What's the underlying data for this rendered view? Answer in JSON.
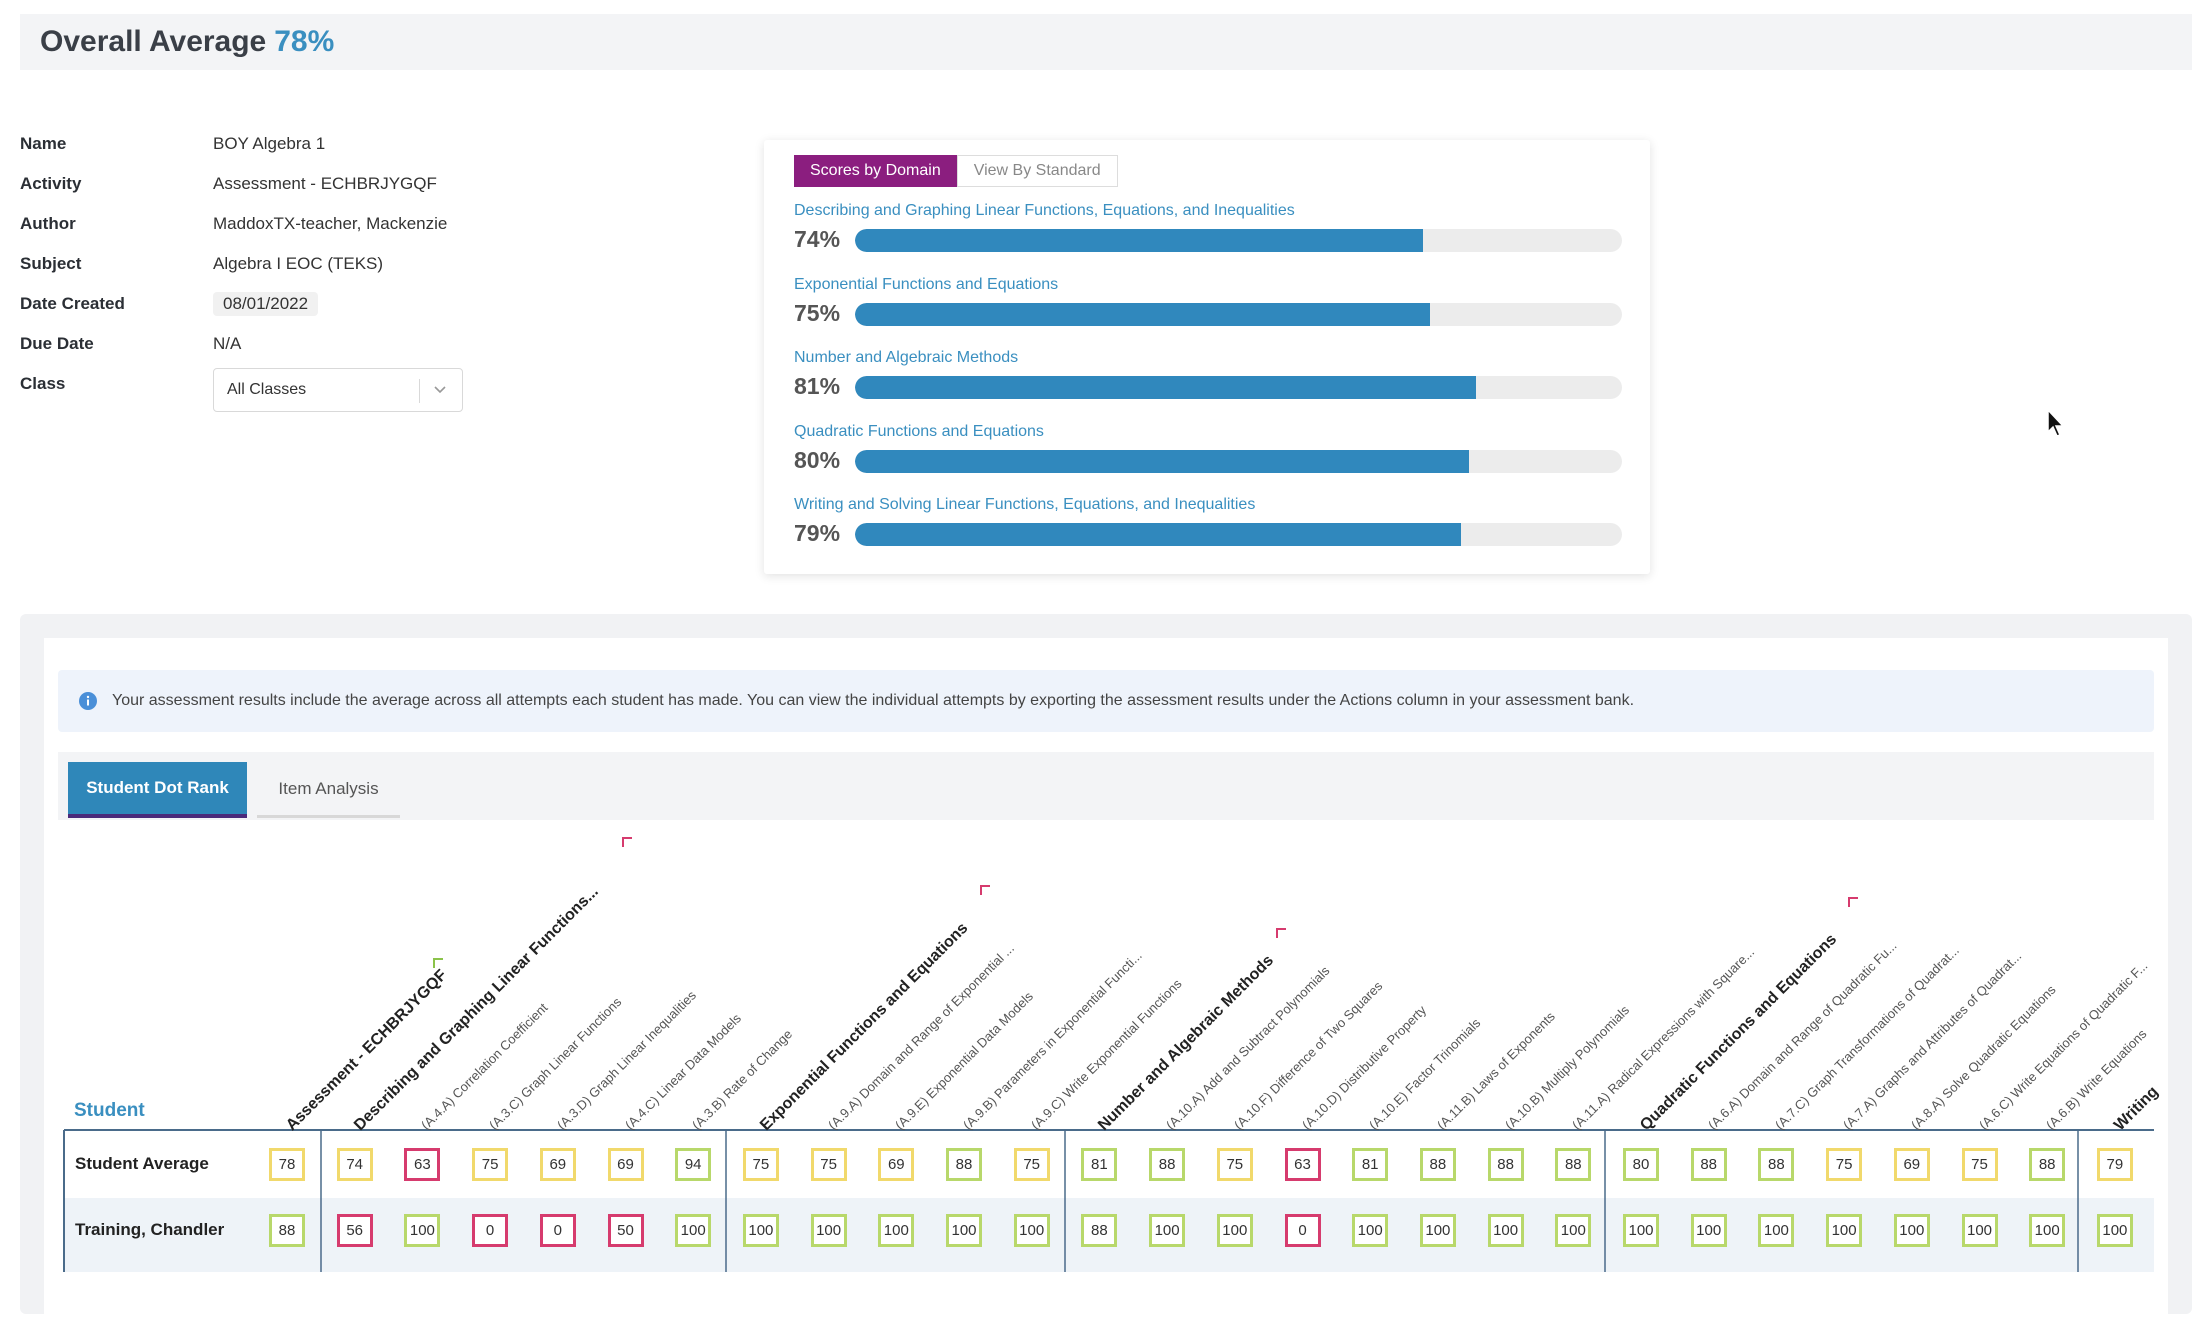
{
  "header": {
    "title": "Overall Average",
    "average": "78%"
  },
  "info": [
    {
      "label": "Name",
      "value": "BOY Algebra 1"
    },
    {
      "label": "Activity",
      "value": "Assessment - ECHBRJYGQF"
    },
    {
      "label": "Author",
      "value": "MaddoxTX-teacher, Mackenzie"
    },
    {
      "label": "Subject",
      "value": "Algebra I EOC (TEKS)"
    },
    {
      "label": "Date Created",
      "value": "08/01/2022"
    },
    {
      "label": "Due Date",
      "value": "N/A"
    },
    {
      "label": "Class",
      "value": "All Classes"
    }
  ],
  "domain_card": {
    "tab_active": "Scores by Domain",
    "tab_inactive": "View By Standard",
    "domains": [
      {
        "name": "Describing and Graphing Linear Functions, Equations, and Inequalities",
        "pct_label": "74%",
        "value": 0.74
      },
      {
        "name": "Exponential Functions and Equations",
        "pct_label": "75%",
        "value": 0.75
      },
      {
        "name": "Number and Algebraic Methods",
        "pct_label": "81%",
        "value": 0.81
      },
      {
        "name": "Quadratic Functions and Equations",
        "pct_label": "80%",
        "value": 0.8
      },
      {
        "name": "Writing and Solving Linear Functions, Equations, and Inequalities",
        "pct_label": "79%",
        "value": 0.79
      }
    ]
  },
  "alert": "Your assessment results include the average across all attempts each student has made. You can view the individual attempts by exporting the assessment results under the Actions column in your assessment bank.",
  "tabs": {
    "active": "Student Dot Rank",
    "inactive": "Item Analysis"
  },
  "table": {
    "student_header": "Student",
    "columns": [
      {
        "label": "Assessment - ECHBRJYGQF",
        "domain": true,
        "flag": "#8bc34a"
      },
      {
        "label": "Describing and Graphing Linear Functions...",
        "domain": true,
        "flag": "#d63b6e"
      },
      {
        "label": "(A.4.A) Correlation Coefficient"
      },
      {
        "label": "(A.3.C) Graph Linear Functions"
      },
      {
        "label": "(A.3.D) Graph Linear Inequalities"
      },
      {
        "label": "(A.4.C) Linear Data Models"
      },
      {
        "label": "(A.3.B) Rate of Change"
      },
      {
        "label": "Exponential Functions and Equations",
        "domain": true,
        "flag": "#d63b6e"
      },
      {
        "label": "(A.9.A) Domain and Range of Exponential ..."
      },
      {
        "label": "(A.9.E) Exponential Data Models"
      },
      {
        "label": "(A.9.B) Parameters in Exponential Functi..."
      },
      {
        "label": "(A.9.C) Write Exponential Functions"
      },
      {
        "label": "Number and Algebraic Methods",
        "domain": true,
        "flag": "#d63b6e"
      },
      {
        "label": "(A.10.A) Add and Subtract Polynomials"
      },
      {
        "label": "(A.10.F) Difference of Two Squares"
      },
      {
        "label": "(A.10.D) Distributive Property"
      },
      {
        "label": "(A.10.E) Factor Trinomials"
      },
      {
        "label": "(A.11.B) Laws of Exponents"
      },
      {
        "label": "(A.10.B) Multiply Polynomials"
      },
      {
        "label": "(A.11.A) Radical Expressions with Square..."
      },
      {
        "label": "Quadratic Functions and Equations",
        "domain": true,
        "flag": "#d63b6e"
      },
      {
        "label": "(A.6.A) Domain and Range of Quadratic Fu..."
      },
      {
        "label": "(A.7.C) Graph Transformations of Quadrat..."
      },
      {
        "label": "(A.7.A) Graphs and Attributes of Quadrat..."
      },
      {
        "label": "(A.8.A) Solve Quadratic Equations"
      },
      {
        "label": "(A.6.C) Write Equations of Quadratic F..."
      },
      {
        "label": "(A.6.B) Write Equations"
      },
      {
        "label": "Writing",
        "domain": true
      }
    ],
    "rows": [
      {
        "name": "Student Average",
        "scores": [
          "78",
          "74",
          "63",
          "75",
          "69",
          "69",
          "94",
          "75",
          "75",
          "69",
          "88",
          "75",
          "81",
          "88",
          "75",
          "63",
          "81",
          "88",
          "88",
          "88",
          "80",
          "88",
          "88",
          "75",
          "69",
          "75",
          "88",
          "79"
        ],
        "colors": [
          "y",
          "y",
          "r",
          "y",
          "y",
          "y",
          "g",
          "y",
          "y",
          "y",
          "g",
          "y",
          "g",
          "g",
          "y",
          "r",
          "g",
          "g",
          "g",
          "g",
          "g",
          "g",
          "g",
          "y",
          "y",
          "y",
          "g",
          "y"
        ]
      },
      {
        "name": "Training, Chandler",
        "scores": [
          "88",
          "56",
          "100",
          "0",
          "0",
          "50",
          "100",
          "100",
          "100",
          "100",
          "100",
          "100",
          "88",
          "100",
          "100",
          "0",
          "100",
          "100",
          "100",
          "100",
          "100",
          "100",
          "100",
          "100",
          "100",
          "100",
          "100",
          "100"
        ],
        "colors": [
          "g",
          "r",
          "g",
          "r",
          "r",
          "r",
          "g",
          "g",
          "g",
          "g",
          "g",
          "g",
          "g",
          "g",
          "g",
          "r",
          "g",
          "g",
          "g",
          "g",
          "g",
          "g",
          "g",
          "g",
          "g",
          "g",
          "g",
          "g"
        ]
      }
    ]
  },
  "colors": {
    "accent": "#3a8fc0",
    "tab_active": "#8b1e7f",
    "bar": "#3088bd"
  }
}
